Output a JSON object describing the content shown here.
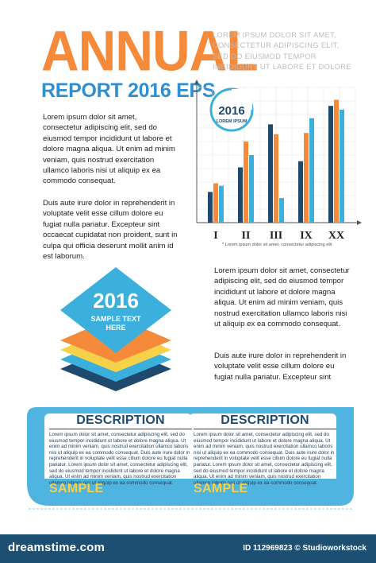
{
  "header": {
    "title": "ANNUAL",
    "subtitle": "REPORT 2016 EPS",
    "intro": "LOREM IPSUM DOLOR SIT AMET, CONSECTETUR ADIPISCING ELIT, SED DO EIUSMOD TEMPOR INCIDIDUNT UT LABORE ET DOLORE"
  },
  "body": {
    "para1": "Lorem ipsum dolor sit amet, consectetur adipiscing elit, sed do eiusmod tempor incididunt ut labore et dolore magna aliqua. Ut enim ad minim veniam, quis nostrud exercitation ullamco laboris nisi ut aliquip ex ea commodo consequat.",
    "para2": "Duis aute irure dolor in reprehenderit in voluptate velit esse cillum dolore eu fugiat nulla pariatur. Excepteur sint occaecat cupidatat non proident, sunt in culpa qui officia deserunt mollit anim id est laborum.",
    "para3": "Lorem ipsum dolor sit amet, consectetur adipiscing elit, sed do eiusmod tempor incididunt ut labore et dolore magna aliqua. Ut enim ad minim veniam, quis nostrud exercitation ullamco laboris nisi ut aliquip ex ea commodo consequat.",
    "para4": "Duis aute irure dolor in reprehenderit in voluptate velit esse cillum dolore eu fugiat nulla pariatur. Excepteur sint"
  },
  "chart_data": {
    "type": "bar",
    "badge_year": "2016",
    "badge_text": "LOREM IPSUM",
    "categories": [
      "I",
      "II",
      "III",
      "IX",
      "XX"
    ],
    "series": [
      {
        "values": [
          25,
          45,
          80,
          50,
          95
        ]
      },
      {
        "values": [
          32,
          66,
          72,
          73,
          100
        ]
      },
      {
        "values": [
          30,
          55,
          20,
          85,
          92
        ]
      }
    ],
    "series_colors": [
      "#1f4a6e",
      "#f58a3a",
      "#3cb0dc"
    ],
    "ylim": [
      0,
      110
    ],
    "grid": true,
    "note": "* Lorem ipsum dolor sit amet, consectetur adipiscing elit"
  },
  "diamond": {
    "year": "2016",
    "line1": "SAMPLE TEXT",
    "line2": "HERE",
    "layer_colors": [
      "#1f4a6e",
      "#3cb0dc",
      "#f6d24a",
      "#f58a3a"
    ]
  },
  "descriptions": [
    {
      "title": "DESCRIPTION",
      "text": "Lorem ipsum dolor sit amet, consectetur adipiscing elit, sed do eiusmod tempor incididunt ut labore et dolore magna aliqua. Ut enim ad minim veniam, quis nostrud exercitation ullamco laboris nisi ut aliquip ex ea commodo consequat. Duis aute irure dolor in reprehenderit in voluptate velit esse cillum dolore eu fugiat nulla pariatur. Lorem ipsum dolor sit amet, consectetur adipiscing elit, sed do eiusmod tempor incididunt ut labore et dolore magna aliqua. Ut enim ad minim veniam, quis nostrud exercitation ullamco laboris nisi ut aliquip ex ea commodo consequat.",
      "sample": "SAMPLE"
    },
    {
      "title": "DESCRIPTION",
      "text": "Lorem ipsum dolor sit amet, consectetur adipiscing elit, sed do eiusmod tempor incididunt ut labore et dolore magna aliqua. Ut enim ad minim veniam, quis nostrud exercitation ullamco laboris nisi ut aliquip ex ea commodo consequat. Duis aute irure dolor in reprehenderit in voluptate velit esse cillum dolore eu fugiat nulla pariatur. Lorem ipsum dolor sit amet, consectetur adipiscing elit, sed do eiusmod tempor incididunt ut labore et dolore magna aliqua. Ut enim ad minim veniam, quis nostrud exercitation ullamco laboris nisi ut aliquip ex ea commodo consequat.",
      "sample": "SAMPLE"
    }
  ],
  "colors": {
    "orange": "#f58a3a",
    "blue": "#2f8fd0",
    "light_blue": "#3cb0dc",
    "navy": "#1f4a6e",
    "yellow": "#f6d24a"
  },
  "footer": {
    "site": "dreamstime.com",
    "id": "ID 112969823 © Studioworkstock"
  }
}
